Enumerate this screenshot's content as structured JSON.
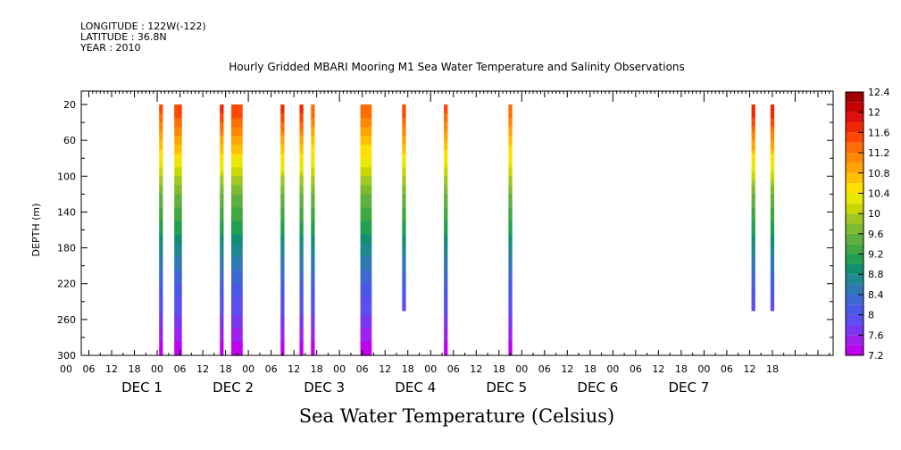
{
  "header": {
    "longitude": "LONGITUDE : 122W(-122)",
    "latitude": "LATITUDE : 36.8N",
    "year": "YEAR : 2010"
  },
  "chart_data": {
    "type": "heatmap",
    "title": "Hourly Gridded MBARI Mooring M1 Sea Water Temperature and Salinity Observations",
    "xlabel": "",
    "ylabel": "DEPTH (m)",
    "variable_label": "Sea Water Temperature (Celsius)",
    "x_unit": "hours since Dec 1 2010 00:00",
    "xlim": [
      -20,
      178
    ],
    "ylim": [
      300,
      5
    ],
    "y_axis_reversed": true,
    "y_ticks": [
      20,
      60,
      100,
      140,
      180,
      220,
      260,
      300
    ],
    "x_hour_ticks": [
      "00",
      "06",
      "12",
      "18",
      "00",
      "06",
      "12",
      "18",
      "00",
      "06",
      "12",
      "18",
      "00",
      "06",
      "12",
      "18",
      "00",
      "06",
      "12",
      "18",
      "00",
      "06",
      "12",
      "18",
      "00",
      "06",
      "12",
      "18",
      "00",
      "06",
      "12",
      "18"
    ],
    "day_labels": [
      "DEC 1",
      "DEC 2",
      "DEC 3",
      "DEC 4",
      "DEC 5",
      "DEC 6",
      "DEC 7"
    ],
    "colorbar": {
      "levels": [
        7.2,
        7.4,
        7.6,
        7.8,
        8.0,
        8.2,
        8.4,
        8.6,
        8.8,
        9.0,
        9.2,
        9.4,
        9.6,
        9.8,
        10.0,
        10.2,
        10.4,
        10.6,
        10.8,
        11.0,
        11.2,
        11.4,
        11.6,
        11.8,
        12.0,
        12.2,
        12.4
      ],
      "labels": [
        "12.4",
        "12",
        "11.6",
        "11.2",
        "10.8",
        "10.4",
        "10",
        "9.6",
        "9.2",
        "8.8",
        "8.4",
        "8",
        "7.6",
        "7.2"
      ],
      "colors": [
        "#c000f0",
        "#a020f0",
        "#7a36f0",
        "#5c4ef0",
        "#4a58e8",
        "#3e68d4",
        "#2e78b4",
        "#208890",
        "#109070",
        "#20a050",
        "#40a840",
        "#60b040",
        "#80bc30",
        "#a0c820",
        "#c8d800",
        "#e8e800",
        "#ffe000",
        "#ffc000",
        "#ffa400",
        "#ff8800",
        "#ff6c00",
        "#ff4800",
        "#f02800",
        "#dc1010",
        "#c40000",
        "#a00000"
      ]
    },
    "columns": [
      {
        "start_hour": 0.5,
        "end_hour": 1.5,
        "max_depth": 300,
        "surface_temp": 11.4
      },
      {
        "start_hour": 4.5,
        "end_hour": 6.5,
        "max_depth": 300,
        "surface_temp": 11.5
      },
      {
        "start_hour": 16.5,
        "end_hour": 17.5,
        "max_depth": 300,
        "surface_temp": 11.6
      },
      {
        "start_hour": 19.5,
        "end_hour": 22.5,
        "max_depth": 300,
        "surface_temp": 11.5
      },
      {
        "start_hour": 32.5,
        "end_hour": 33.5,
        "max_depth": 300,
        "surface_temp": 11.6
      },
      {
        "start_hour": 37.5,
        "end_hour": 38.5,
        "max_depth": 300,
        "surface_temp": 11.6
      },
      {
        "start_hour": 40.5,
        "end_hour": 41.5,
        "max_depth": 300,
        "surface_temp": 11.3
      },
      {
        "start_hour": 53.5,
        "end_hour": 56.5,
        "max_depth": 300,
        "surface_temp": 11.3
      },
      {
        "start_hour": 64.5,
        "end_hour": 65.5,
        "max_depth": 250,
        "surface_temp": 11.5
      },
      {
        "start_hour": 75.5,
        "end_hour": 76.5,
        "max_depth": 300,
        "surface_temp": 11.4
      },
      {
        "start_hour": 92.5,
        "end_hour": 93.5,
        "max_depth": 300,
        "surface_temp": 11.3
      },
      {
        "start_hour": 156.5,
        "end_hour": 157.5,
        "max_depth": 250,
        "surface_temp": 11.7
      },
      {
        "start_hour": 161.5,
        "end_hour": 162.5,
        "max_depth": 250,
        "surface_temp": 11.7
      }
    ],
    "grid": false,
    "legend_position": "right"
  }
}
